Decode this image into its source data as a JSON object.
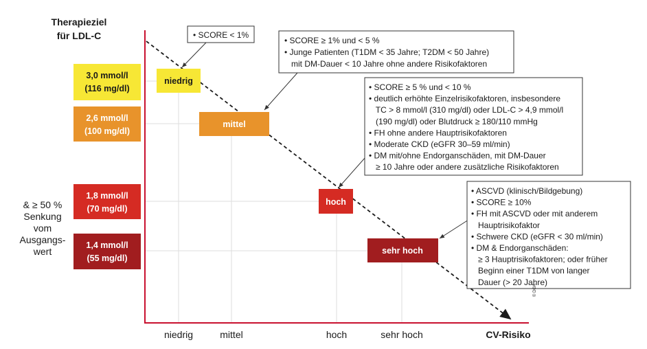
{
  "title": [
    "Therapieziel",
    "für LDL-C"
  ],
  "side_note": [
    "& ≥ 50 %",
    "Senkung",
    "vom",
    "Ausgangs-",
    "wert"
  ],
  "targets": [
    [
      "3,0 mmol/l",
      "(116 mg/dl)"
    ],
    [
      "2,6 mmol/l",
      "(100 mg/dl)"
    ],
    [
      "1,8 mmol/l",
      "(70 mg/dl)"
    ],
    [
      "1,4 mmol/l",
      "(55 mg/dl)"
    ]
  ],
  "risk_boxes": [
    "niedrig",
    "mittel",
    "hoch",
    "sehr hoch"
  ],
  "x_labels": [
    "niedrig",
    "mittel",
    "hoch",
    "sehr hoch"
  ],
  "x_axis_title": "CV-Risiko",
  "copyright": "© DGK",
  "callouts": [
    [
      "• SCORE < 1%"
    ],
    [
      "• SCORE ≥ 1% und < 5 %",
      "• Junge Patienten (T1DM < 35 Jahre; T2DM < 50 Jahre)",
      "   mit DM-Dauer < 10 Jahre ohne andere Risikofaktoren"
    ],
    [
      "• SCORE ≥ 5 % und < 10 %",
      "• deutlich erhöhte Einzelrisikofaktoren, insbesondere",
      "   TC > 8 mmol/l (310 mg/dl) oder LDL-C > 4,9 mmol/l",
      "   (190 mg/dl) oder Blutdruck ≥ 180/110 mmHg",
      "• FH ohne andere Hauptrisikofaktoren",
      "• Moderate CKD (eGFR 30–59 ml/min)",
      "• DM mit/ohne Endorganschäden, mit DM-Dauer",
      "   ≥ 10 Jahre oder andere zusätzliche Risikofaktoren"
    ],
    [
      "• ASCVD (klinisch/Bildgebung)",
      "• SCORE ≥ 10%",
      "• FH mit ASCVD oder mit anderem",
      "   Hauptrisikofaktor",
      "• Schwere CKD (eGFR < 30 ml/min)",
      "• DM & Endorganschäden:",
      "   ≥ 3 Hauptrisikofaktoren; oder früher",
      "   Beginn einer T1DM von langer",
      "   Dauer (> 20 Jahre)"
    ]
  ]
}
